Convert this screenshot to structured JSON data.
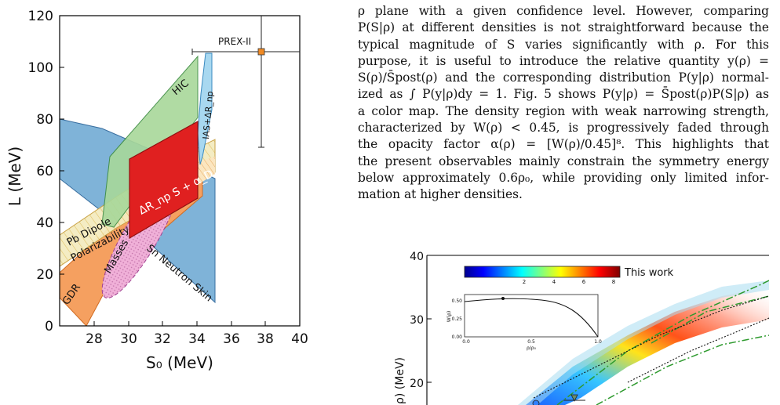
{
  "left_figure": {
    "xlabel": "S₀ (MeV)",
    "ylabel": "L (MeV)",
    "x_ticks": [
      "28",
      "30",
      "32",
      "34",
      "36",
      "38",
      "40"
    ],
    "y_ticks": [
      "0",
      "20",
      "40",
      "60",
      "80",
      "100",
      "120"
    ],
    "xlim": [
      26,
      40
    ],
    "ylim": [
      0,
      120
    ],
    "region_labels": {
      "hic": "HIC",
      "ias": "IAS+ΔR_np",
      "pb_dipole_1": "Pb Dipole",
      "pb_dipole_2": "Polarizability",
      "main": "ΔR_np S + α_D",
      "gdr": "GDR",
      "masses": "Masses",
      "sn_skin": "Sn Neutron Skin",
      "prex": "PREX-II"
    },
    "prex_point": {
      "x": 37.7,
      "y": 106,
      "xerr": [
        34,
        41.5
      ],
      "yerr": [
        69,
        120
      ]
    },
    "colors": {
      "sn_skin": "#7fb3d8",
      "gdr": "#f5a060",
      "hic": "#a8d89a",
      "main": "#e02020",
      "masses": "#e8a0d0",
      "pb_dipole": "#f0e3a0",
      "prex_marker": "#f08a24"
    }
  },
  "text": {
    "lines": [
      "ρ plane with a given confidence level.  However, comparing",
      "P(S|ρ) at different densities is not straightforward because the",
      "typical magnitude of S varies significantly with ρ.  For this",
      "purpose, it is useful to introduce the relative quantity y(ρ) =",
      "S(ρ)/S̄post(ρ) and the corresponding distribution P(y|ρ) normal-",
      "ized as ∫ P(y|ρ)dy = 1.  Fig. 5 shows P(y|ρ) = S̄post(ρ)P(S|ρ) as",
      "a color map. The density region with weak narrowing strength,",
      "characterized by W(ρ) < 0.45, is progressively faded through",
      "the opacity factor α(ρ) = [W(ρ)/0.45]⁸.  This highlights that",
      "the present observables mainly constrain the symmetry energy",
      "below approximately 0.6ρ₀, while providing only limited infor-",
      "mation at higher densities."
    ]
  },
  "right_figure": {
    "ylabel": "ρ) (MeV)",
    "y_ticks": [
      "40",
      "30",
      "20"
    ],
    "colorbar_ticks": [
      "2",
      "4",
      "6",
      "8"
    ],
    "legend_label": "This work",
    "inset": {
      "ylabel": "W(ρ)",
      "xlabel": "ρ/ρ₀",
      "y_ticks": [
        "0.00",
        "0.25",
        "0.50"
      ],
      "x_ticks": [
        "0.0",
        "0.5",
        "1.0"
      ]
    }
  }
}
